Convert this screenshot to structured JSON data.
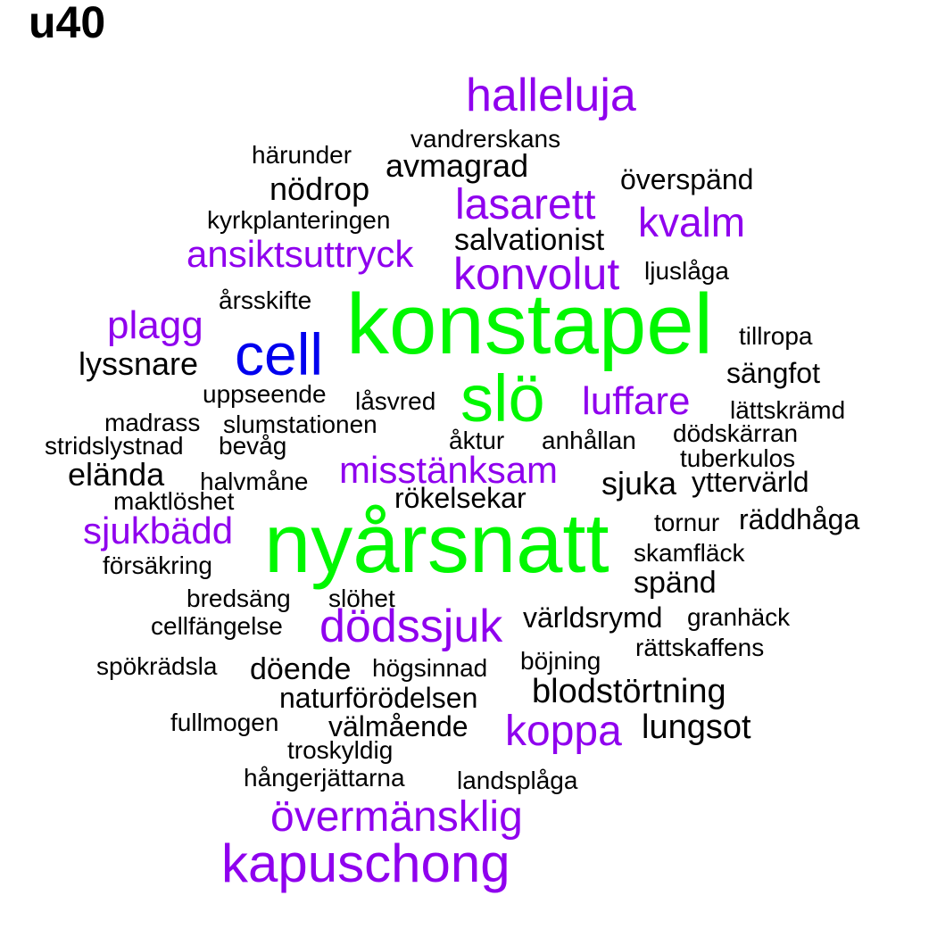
{
  "title": "u40",
  "colors": {
    "black": "#000000",
    "purple": "#8f00ee",
    "green": "#00f700",
    "blue": "#0000ee"
  },
  "words": [
    "halleluja",
    "vandrerskans",
    "härunder",
    "avmagrad",
    "överspänd",
    "nödrop",
    "lasarett",
    "kvalm",
    "kyrkplanteringen",
    "salvationist",
    "ansiktsuttryck",
    "konvolut",
    "ljuslåga",
    "årsskifte",
    "konstapel",
    "plagg",
    "tillropa",
    "cell",
    "lyssnare",
    "sängfot",
    "uppseende",
    "låsvred",
    "slö",
    "luffare",
    "lättskrämd",
    "madrass",
    "slumstationen",
    "stridslystnad",
    "bevåg",
    "åktur",
    "anhållan",
    "dödskärran",
    "tuberkulos",
    "misstänksam",
    "eländа",
    "halvmåne",
    "sjuka",
    "yttervärld",
    "maktlöshet",
    "rökelsekar",
    "räddhåga",
    "tornur",
    "sjukbädd",
    "nyårsnatt",
    "skamfläck",
    "försäkring",
    "spänd",
    "bredsäng",
    "slöhet",
    "världsrymd",
    "granhäck",
    "cellfängelse",
    "dödssjuk",
    "rättskaffens",
    "spökrädsla",
    "döende",
    "högsinnad",
    "böjning",
    "naturförödelsen",
    "blodstörtning",
    "fullmogen",
    "välmående",
    "koppa",
    "lungsot",
    "troskyldig",
    "hångerjättarna",
    "landsplåga",
    "övermänsklig",
    "kapuschong"
  ]
}
